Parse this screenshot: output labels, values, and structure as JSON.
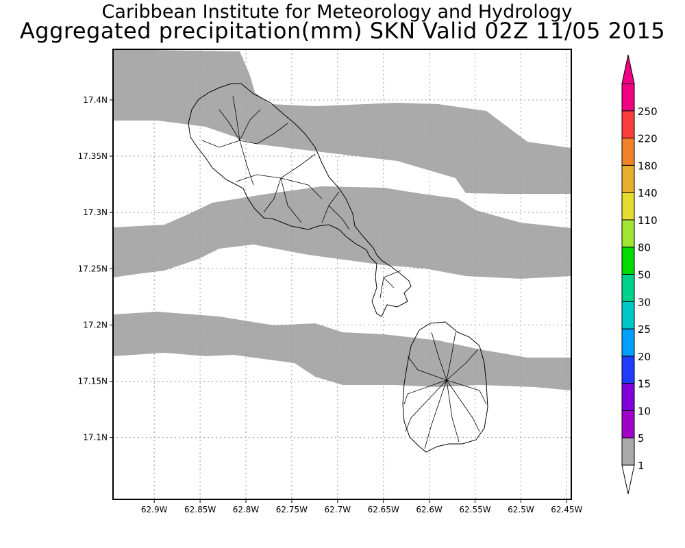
{
  "title": {
    "line1": "Caribbean Institute for Meteorology and Hydrology",
    "line2": "Aggregated precipitation(mm) SKN Valid 02Z 11/05 2015"
  },
  "map": {
    "region": "St Kitts and Nevis",
    "lon_range": [
      -62.945,
      -62.445
    ],
    "lat_range": [
      17.045,
      17.445
    ],
    "x_ticks": [
      {
        "value": -62.9,
        "label": "62.9W"
      },
      {
        "value": -62.85,
        "label": "62.85W"
      },
      {
        "value": -62.8,
        "label": "62.8W"
      },
      {
        "value": -62.75,
        "label": "62.75W"
      },
      {
        "value": -62.7,
        "label": "62.7W"
      },
      {
        "value": -62.65,
        "label": "62.65W"
      },
      {
        "value": -62.6,
        "label": "62.6W"
      },
      {
        "value": -62.55,
        "label": "62.55W"
      },
      {
        "value": -62.5,
        "label": "62.5W"
      },
      {
        "value": -62.45,
        "label": "62.45W"
      }
    ],
    "y_ticks": [
      {
        "value": 17.4,
        "label": "17.4N"
      },
      {
        "value": 17.35,
        "label": "17.35N"
      },
      {
        "value": 17.3,
        "label": "17.3N"
      },
      {
        "value": 17.25,
        "label": "17.25N"
      },
      {
        "value": 17.2,
        "label": "17.2N"
      },
      {
        "value": 17.15,
        "label": "17.15N"
      },
      {
        "value": 17.1,
        "label": "17.1N"
      }
    ],
    "grid": true,
    "precip_band_color": "#aaaaaa",
    "precip_band_class": "1-5 mm"
  },
  "colorbar": {
    "levels": [
      "1",
      "5",
      "10",
      "15",
      "20",
      "25",
      "30",
      "50",
      "80",
      "110",
      "140",
      "180",
      "220",
      "250"
    ],
    "colors": [
      "#aaaaaa",
      "#a000c8",
      "#8200dc",
      "#1e3cff",
      "#00a0ff",
      "#00c8c8",
      "#00d28c",
      "#00dc00",
      "#a0e632",
      "#e6dc32",
      "#e6af2d",
      "#f08228",
      "#fa3c3c",
      "#f00082"
    ],
    "below_color": "#ffffff",
    "above_color": "#f00082"
  }
}
